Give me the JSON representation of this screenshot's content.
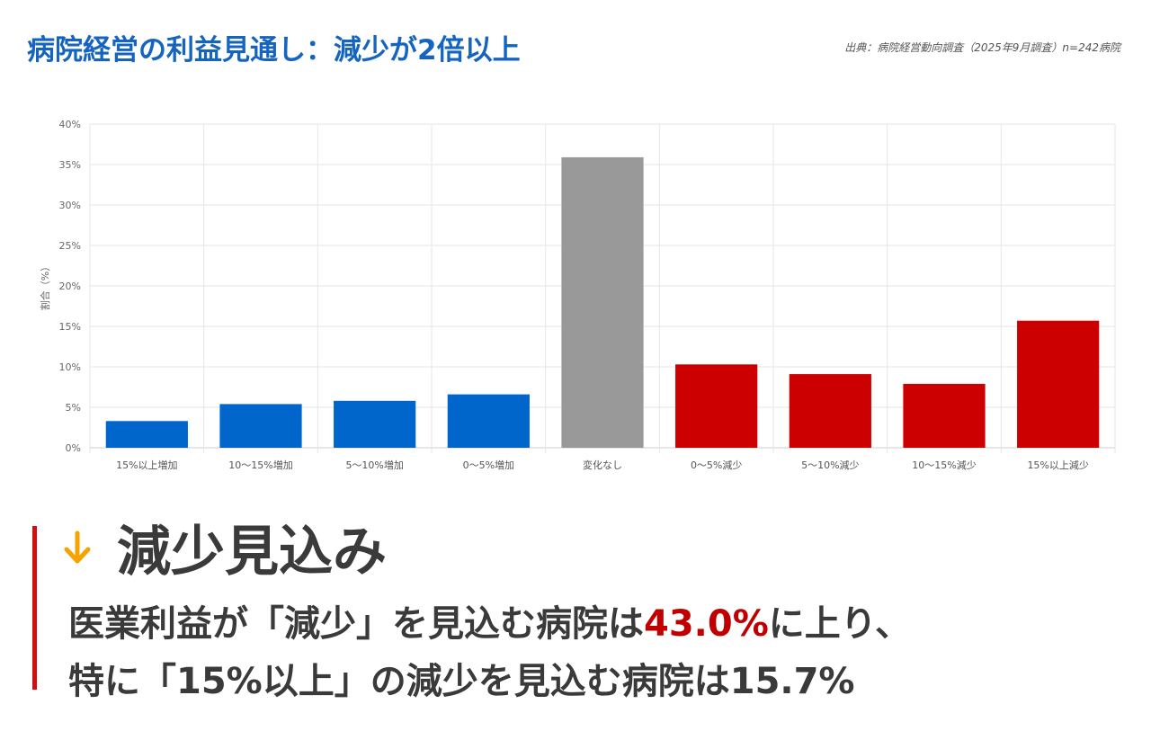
{
  "header": {
    "title": "病院経営の利益見通し：減少が2倍以上",
    "source": "出典：病院経営動向調査（2025年9月調査）n=242病院"
  },
  "chart_data": {
    "type": "bar",
    "ylabel": "割合（%）",
    "ylim": [
      0,
      40
    ],
    "yticks": [
      "0%",
      "5%",
      "10%",
      "15%",
      "20%",
      "25%",
      "30%",
      "35%",
      "40%"
    ],
    "categories": [
      "15%以上増加",
      "10～15%増加",
      "5～10%増加",
      "0～5%増加",
      "変化なし",
      "0～5%減少",
      "5～10%減少",
      "10～15%減少",
      "15%以上減少"
    ],
    "values": [
      3.3,
      5.4,
      5.8,
      6.6,
      35.9,
      10.3,
      9.1,
      7.9,
      15.7
    ],
    "bar_colors": [
      "#0066cc",
      "#0066cc",
      "#0066cc",
      "#0066cc",
      "#999999",
      "#cc0000",
      "#cc0000",
      "#cc0000",
      "#cc0000"
    ],
    "grid": true
  },
  "callout": {
    "icon": "arrow-down-icon",
    "icon_color": "#f5a300",
    "title": "減少見込み",
    "line1_pre": "医業利益が「減少」を見込む病院は",
    "line1_highlight": "43.0%",
    "line1_post": "に上り、",
    "line2": "特に「15%以上」の減少を見込む病院は15.7%",
    "highlight_color": "#c00000",
    "bar_color": "#d01010"
  }
}
